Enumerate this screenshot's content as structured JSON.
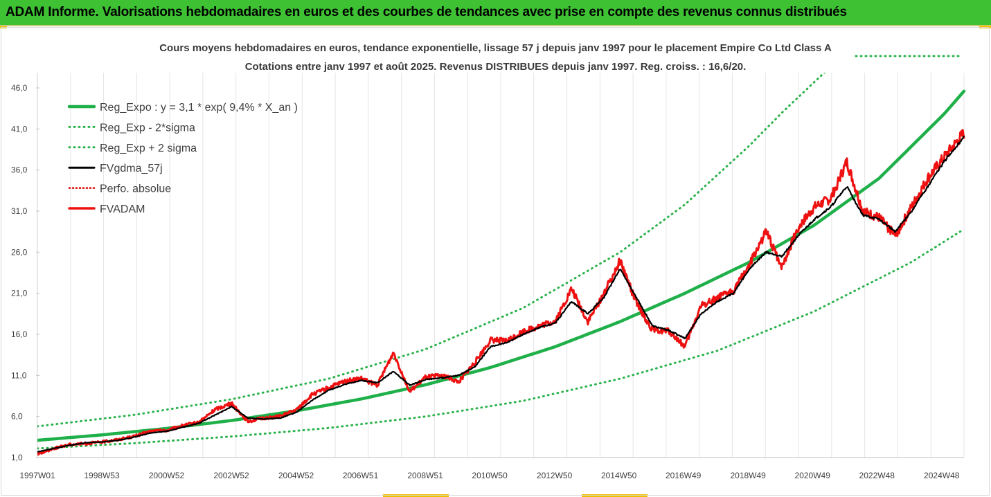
{
  "banner": {
    "title": "ADAM Informe. Valorisations hebdomadaires en euros et des courbes de tendances avec prise en compte des revenus connus distribués"
  },
  "colors": {
    "banner_bg": "#3ec234",
    "trend_green": "#1fb04a",
    "dotted_green": "#2bb24c",
    "fvgdma_black": "#000000",
    "fvadam_red": "#ee1111",
    "perfo_red": "#dd0000",
    "accent_yellow": "#f0c000"
  },
  "chart_data": {
    "type": "line",
    "title": "Cours moyens hebdomadaires en euros, tendance exponentielle, lissage 57 j depuis janv 1997 pour le placement Empire Co Ltd Class A",
    "subtitle": "Cotations entre janv 1997 et août 2025. Revenus DISTRIBUES depuis janv 1997. Reg. croiss. : 16,6/20.",
    "x_range": [
      1997.0,
      2025.62
    ],
    "ylim": [
      1.0,
      48.5
    ],
    "yticks": [
      1.0,
      6.0,
      11.0,
      16.0,
      21.0,
      26.0,
      31.0,
      36.0,
      41.0,
      46.0
    ],
    "ytick_labels": [
      "1,0",
      "6,0",
      "11,0",
      "16,0",
      "21,0",
      "26,0",
      "31,0",
      "36,0",
      "41,0",
      "46,0"
    ],
    "xticks": [
      1997.0,
      1998.99,
      2000.99,
      2002.99,
      2004.99,
      2006.98,
      2008.98,
      2010.97,
      2012.97,
      2014.96,
      2016.95,
      2018.95,
      2020.94,
      2022.93,
      2024.93
    ],
    "xtick_labels": [
      "1997W01",
      "1998W53",
      "2000W52",
      "2002W52",
      "2004W52",
      "2006W51",
      "2008W51",
      "2010W50",
      "2012W50",
      "2014W50",
      "2016W49",
      "2018W49",
      "2020W49",
      "2022W48",
      "2024W48"
    ],
    "grid": "vertical",
    "legend_position": "top-left",
    "legend": [
      {
        "label": "Reg_Expo : y = 3,1 * exp( 9,4% *  X_an )",
        "style": "solid-green"
      },
      {
        "label": "Reg_Exp - 2*sigma",
        "style": "dotted-green"
      },
      {
        "label": "Reg_Exp + 2 sigma",
        "style": "dotted-green"
      },
      {
        "label": "FVgdma_57j",
        "style": "solid-black"
      },
      {
        "label": "Perfo. absolue",
        "style": "dotted-red"
      },
      {
        "label": "FVADAM",
        "style": "solid-red"
      }
    ],
    "series": [
      {
        "name": "Reg_Expo : y = 3,1 * exp( 9,4% *  X_an )",
        "x": [
          1997.0,
          1999.0,
          2001.0,
          2003.0,
          2005.0,
          2007.0,
          2009.0,
          2011.0,
          2013.0,
          2015.0,
          2017.0,
          2019.0,
          2021.0,
          2023.0,
          2025.0,
          2025.62
        ],
        "values": [
          3.1,
          3.76,
          4.55,
          5.51,
          6.69,
          8.13,
          9.87,
          11.97,
          14.5,
          17.55,
          21.0,
          24.8,
          29.3,
          35.0,
          42.8,
          45.6
        ]
      },
      {
        "name": "Reg_Exp - 2*sigma",
        "x": [
          1997.0,
          2000.0,
          2003.0,
          2006.0,
          2009.0,
          2012.0,
          2015.0,
          2018.0,
          2021.0,
          2024.0,
          2025.62
        ],
        "values": [
          2.1,
          2.75,
          3.56,
          4.6,
          6.0,
          7.9,
          10.6,
          14.0,
          18.8,
          24.8,
          28.8
        ]
      },
      {
        "name": "Reg_Exp + 2 sigma",
        "x": [
          1997.0,
          2000.0,
          2003.0,
          2006.0,
          2009.0,
          2012.0,
          2015.0,
          2017.0,
          2019.0,
          2020.0,
          2021.48
        ],
        "values": [
          4.8,
          6.2,
          8.1,
          10.6,
          14.2,
          19.2,
          26.0,
          31.8,
          39.0,
          43.0,
          48.5
        ]
      },
      {
        "name": "FVgdma_57j",
        "x": [
          1997.0,
          1997.5,
          1998.0,
          1998.5,
          1999.0,
          1999.5,
          2000.0,
          2000.5,
          2001.0,
          2001.5,
          2002.0,
          2002.5,
          2003.0,
          2003.5,
          2004.0,
          2004.5,
          2005.0,
          2005.5,
          2006.0,
          2006.5,
          2007.0,
          2007.5,
          2008.0,
          2008.5,
          2009.0,
          2009.5,
          2010.0,
          2010.5,
          2011.0,
          2011.5,
          2012.0,
          2012.5,
          2013.0,
          2013.5,
          2014.0,
          2014.5,
          2015.0,
          2015.5,
          2016.0,
          2016.5,
          2017.0,
          2017.5,
          2018.0,
          2018.5,
          2019.0,
          2019.5,
          2020.0,
          2020.5,
          2021.0,
          2021.5,
          2022.0,
          2022.5,
          2023.0,
          2023.5,
          2024.0,
          2024.5,
          2025.0,
          2025.62
        ],
        "values": [
          1.7,
          2.1,
          2.5,
          2.8,
          2.9,
          3.1,
          3.5,
          4.0,
          4.2,
          4.7,
          5.2,
          6.2,
          7.2,
          5.8,
          5.7,
          5.8,
          6.5,
          8.0,
          9.2,
          9.9,
          10.4,
          10.1,
          11.5,
          9.8,
          10.5,
          10.7,
          11.0,
          12.0,
          14.5,
          15.0,
          16.0,
          16.8,
          17.4,
          20.0,
          18.5,
          20.5,
          24.0,
          20.5,
          17.0,
          16.5,
          15.5,
          18.5,
          20.0,
          21.0,
          24.0,
          26.0,
          25.5,
          28.0,
          30.0,
          31.5,
          34.0,
          30.5,
          30.0,
          28.5,
          31.0,
          34.0,
          37.0,
          40.0
        ]
      },
      {
        "name": "FVADAM",
        "x": [
          1997.0,
          1997.5,
          1998.0,
          1998.5,
          1999.0,
          1999.5,
          2000.0,
          2000.5,
          2001.0,
          2001.5,
          2002.0,
          2002.5,
          2003.0,
          2003.5,
          2004.0,
          2004.5,
          2005.0,
          2005.5,
          2006.0,
          2006.5,
          2007.0,
          2007.5,
          2008.0,
          2008.5,
          2009.0,
          2009.5,
          2010.0,
          2010.5,
          2011.0,
          2011.5,
          2012.0,
          2012.5,
          2013.0,
          2013.5,
          2014.0,
          2014.5,
          2015.0,
          2015.5,
          2016.0,
          2016.5,
          2017.0,
          2017.5,
          2018.0,
          2018.5,
          2019.0,
          2019.5,
          2020.0,
          2020.5,
          2021.0,
          2021.5,
          2022.0,
          2022.5,
          2023.0,
          2023.5,
          2024.0,
          2024.5,
          2025.0,
          2025.62
        ],
        "values": [
          1.4,
          2.1,
          2.6,
          2.7,
          2.9,
          3.2,
          3.6,
          4.2,
          4.3,
          4.9,
          5.3,
          6.9,
          7.6,
          5.4,
          5.8,
          6.0,
          6.8,
          8.7,
          9.5,
          10.3,
          10.6,
          9.8,
          13.8,
          9.0,
          10.8,
          11.0,
          10.2,
          12.5,
          15.3,
          15.2,
          16.3,
          17.0,
          17.6,
          21.5,
          17.5,
          21.0,
          25.0,
          19.8,
          16.5,
          16.4,
          14.5,
          19.5,
          20.4,
          21.3,
          24.5,
          28.5,
          24.2,
          29.0,
          31.5,
          32.5,
          37.0,
          31.0,
          30.2,
          28.0,
          31.5,
          35.0,
          37.5,
          40.5
        ]
      }
    ]
  }
}
